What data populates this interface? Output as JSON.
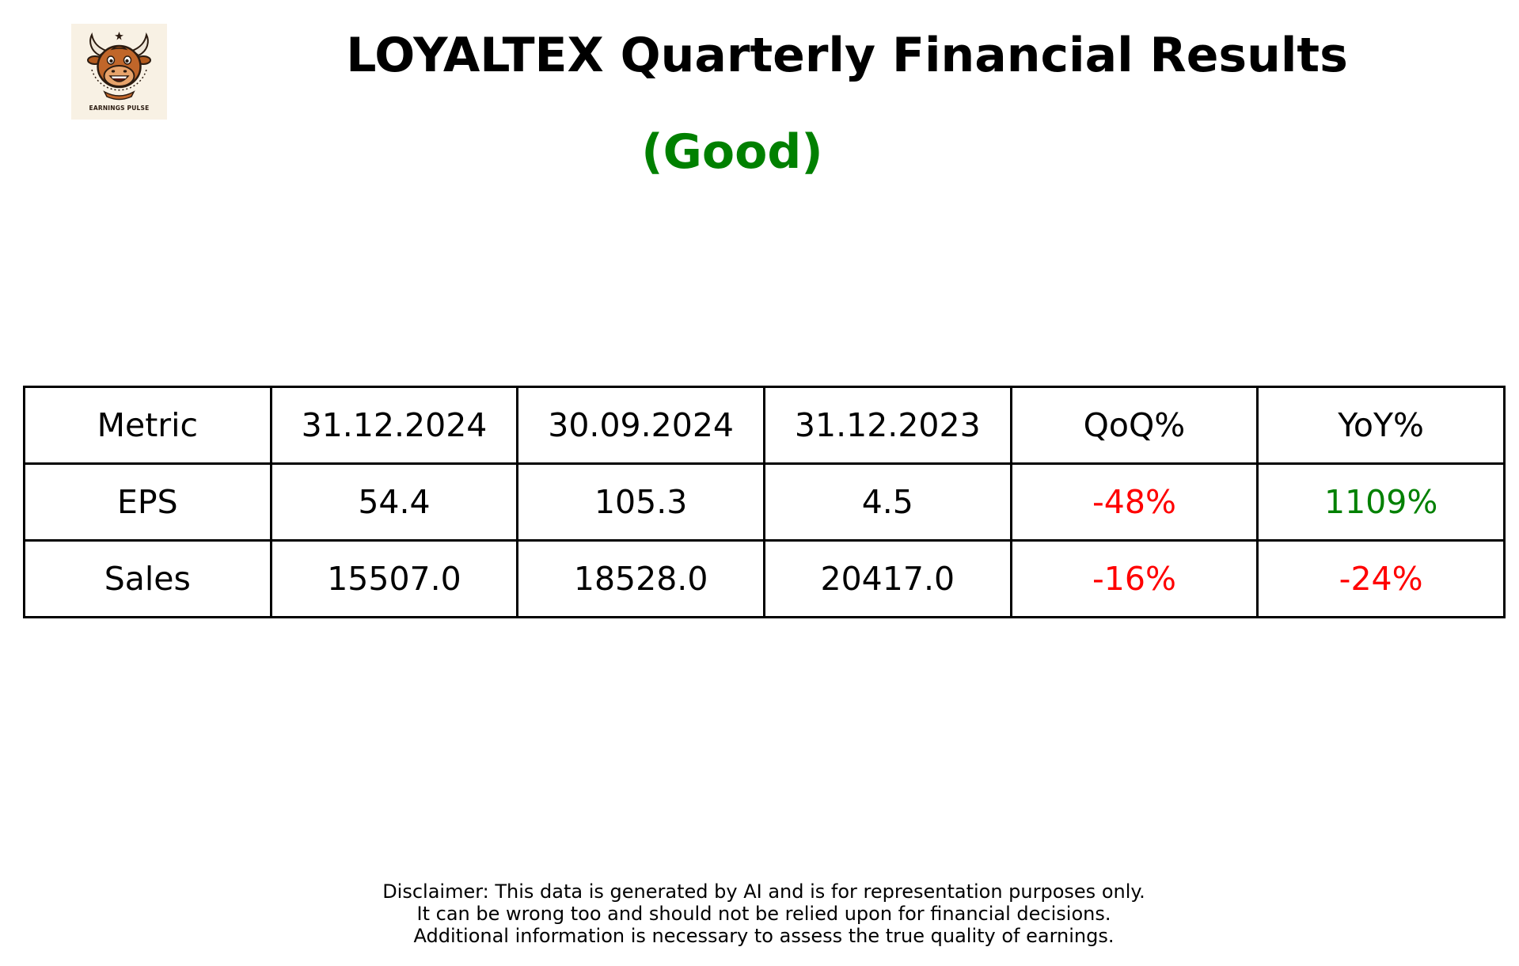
{
  "logo": {
    "caption": "EARNINGS PULSE",
    "icon": "bull-mascot-icon"
  },
  "header": {
    "title": "LOYALTEX Quarterly Financial Results",
    "rating": "(Good)",
    "rating_color": "#008000"
  },
  "table": {
    "headers": [
      "Metric",
      "31.12.2024",
      "30.09.2024",
      "31.12.2023",
      "QoQ%",
      "YoY%"
    ],
    "rows": [
      {
        "metric": "EPS",
        "q1": "54.4",
        "q2": "105.3",
        "q3": "4.5",
        "qoq": "-48%",
        "qoq_color": "#ff0000",
        "yoy": "1109%",
        "yoy_color": "#008000"
      },
      {
        "metric": "Sales",
        "q1": "15507.0",
        "q2": "18528.0",
        "q3": "20417.0",
        "qoq": "-16%",
        "qoq_color": "#ff0000",
        "yoy": "-24%",
        "yoy_color": "#ff0000"
      }
    ]
  },
  "disclaimer": {
    "lines": [
      "Disclaimer: This data is generated by AI and is for representation purposes only.",
      "It can be wrong too and should not be relied upon for financial decisions.",
      "Additional information is necessary to assess the true quality of earnings."
    ]
  }
}
